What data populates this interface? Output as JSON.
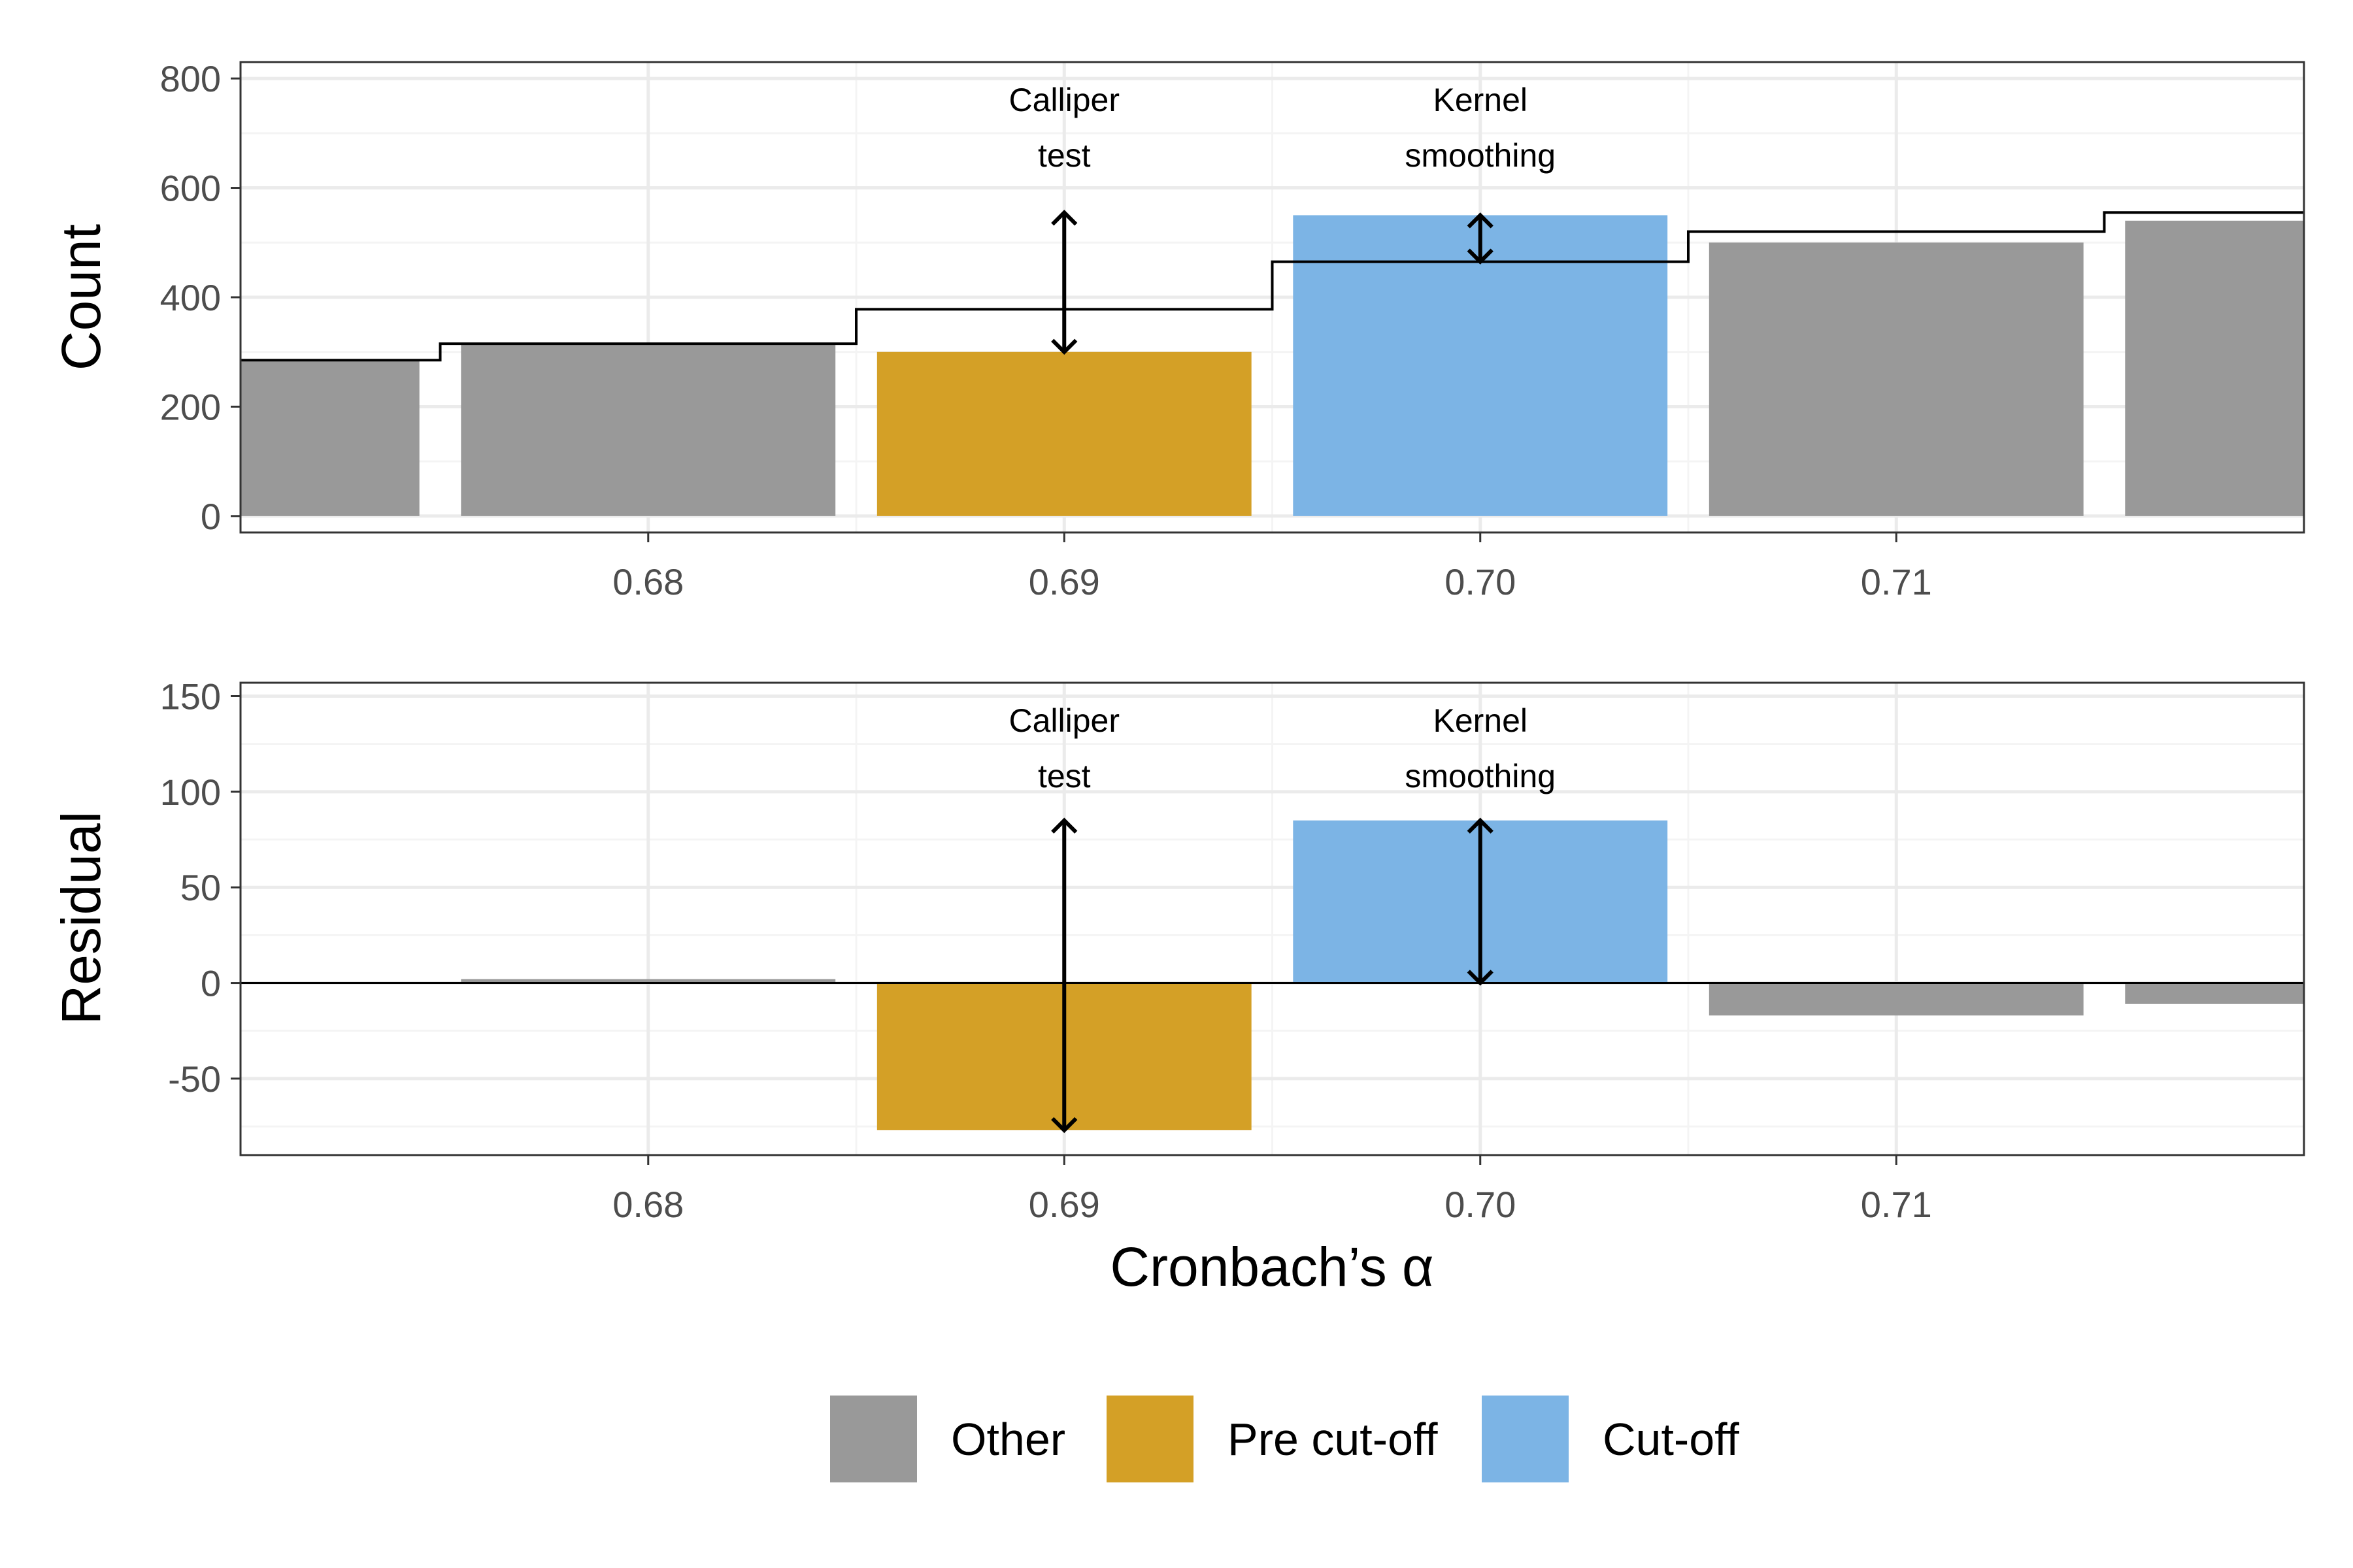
{
  "chart_data": [
    {
      "type": "bar",
      "panel": "top",
      "ylabel": "Count",
      "xlabel": "",
      "x": [
        0.67,
        0.68,
        0.69,
        0.7,
        0.71,
        0.72
      ],
      "values": [
        285,
        315,
        300,
        550,
        500,
        540
      ],
      "groups": [
        "Other",
        "Other",
        "Pre cut-off",
        "Cut-off",
        "Other",
        "Other"
      ],
      "step_line": [
        285,
        315,
        378,
        465,
        520,
        555
      ],
      "xlim": [
        0.6702,
        0.7198
      ],
      "ylim": [
        -30,
        830
      ],
      "xticks": [
        0.68,
        0.69,
        0.7,
        0.71
      ],
      "xtick_labels": [
        "0.68",
        "0.69",
        "0.70",
        "0.71"
      ],
      "yticks": [
        0,
        200,
        400,
        600,
        800
      ],
      "ytick_labels": [
        "0",
        "200",
        "400",
        "600",
        "800"
      ],
      "grid": true,
      "annotations": [
        {
          "lines": [
            "Calliper",
            "test"
          ],
          "x": 0.69,
          "arrow_from": 300,
          "arrow_to": 555
        },
        {
          "lines": [
            "Kernel",
            "smoothing"
          ],
          "x": 0.7,
          "arrow_from": 465,
          "arrow_to": 550
        }
      ]
    },
    {
      "type": "bar",
      "panel": "bottom",
      "ylabel": "Residual",
      "xlabel": "Cronbach’s α",
      "x": [
        0.68,
        0.69,
        0.7,
        0.71,
        0.72
      ],
      "values": [
        2,
        -77,
        85,
        -17,
        -11
      ],
      "groups": [
        "Other",
        "Pre cut-off",
        "Cut-off",
        "Other",
        "Other"
      ],
      "zero_line": true,
      "xlim": [
        0.6702,
        0.7198
      ],
      "ylim": [
        -90,
        157
      ],
      "xticks": [
        0.68,
        0.69,
        0.7,
        0.71
      ],
      "xtick_labels": [
        "0.68",
        "0.69",
        "0.70",
        "0.71"
      ],
      "yticks": [
        -50,
        0,
        50,
        100,
        150
      ],
      "ytick_labels": [
        "-50",
        "0",
        "50",
        "100",
        "150"
      ],
      "grid": true,
      "annotations": [
        {
          "lines": [
            "Calliper",
            "test"
          ],
          "x": 0.69,
          "arrow_from": -77,
          "arrow_to": 85
        },
        {
          "lines": [
            "Kernel",
            "smoothing"
          ],
          "x": 0.7,
          "arrow_from": 0,
          "arrow_to": 85
        }
      ]
    }
  ],
  "legend": {
    "placement": "bottom",
    "items": [
      {
        "label": "Other",
        "color": "#999999"
      },
      {
        "label": "Pre cut-off",
        "color": "#D4A026"
      },
      {
        "label": "Cut-off",
        "color": "#7CB4E5"
      }
    ]
  },
  "colors": {
    "Other": "#999999",
    "Pre cut-off": "#D4A026",
    "Cut-off": "#7CB4E5",
    "grid_major": "#ebebeb",
    "grid_minor": "#f4f4f4",
    "panel_border": "#333333"
  }
}
